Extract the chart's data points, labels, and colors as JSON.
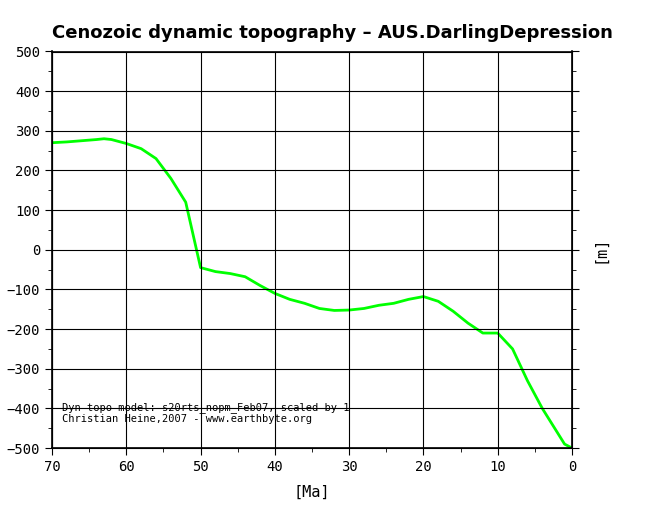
{
  "title": "Cenozoic dynamic topography – AUS.DarlingDepression",
  "xlabel": "[Ma]",
  "ylabel": "[m]",
  "xlim": [
    70,
    0
  ],
  "ylim": [
    -500,
    500
  ],
  "xticks": [
    70,
    60,
    50,
    40,
    30,
    20,
    10,
    0
  ],
  "yticks": [
    -500,
    -400,
    -300,
    -200,
    -100,
    0,
    100,
    200,
    300,
    400,
    500
  ],
  "line_color": "#00ff00",
  "line_width": 2.0,
  "annotation_line1": "Dyn topo model: s20rts_nopm_Feb07, scaled by 1",
  "annotation_line2": "Christian Heine,2007 - www.earthbyte.org",
  "annotation_fontsize": 7.5,
  "title_fontsize": 13,
  "label_fontsize": 11,
  "tick_fontsize": 10,
  "x_data": [
    70,
    68,
    66,
    64,
    63,
    62,
    60,
    58,
    56,
    54,
    52,
    50,
    48,
    46,
    44,
    42,
    40,
    38,
    36,
    34,
    32,
    30,
    28,
    26,
    24,
    22,
    20,
    18,
    16,
    14,
    12,
    10,
    8,
    6,
    4,
    2,
    1,
    0
  ],
  "y_data": [
    270,
    272,
    275,
    278,
    280,
    278,
    268,
    255,
    230,
    180,
    120,
    -45,
    -55,
    -60,
    -68,
    -90,
    -110,
    -125,
    -135,
    -148,
    -153,
    -152,
    -148,
    -140,
    -135,
    -125,
    -118,
    -130,
    -155,
    -185,
    -210,
    -210,
    -250,
    -330,
    -400,
    -460,
    -490,
    -500
  ],
  "bg_color": "#ffffff",
  "grid_color": "#000000",
  "axes_face_color": "#ffffff"
}
